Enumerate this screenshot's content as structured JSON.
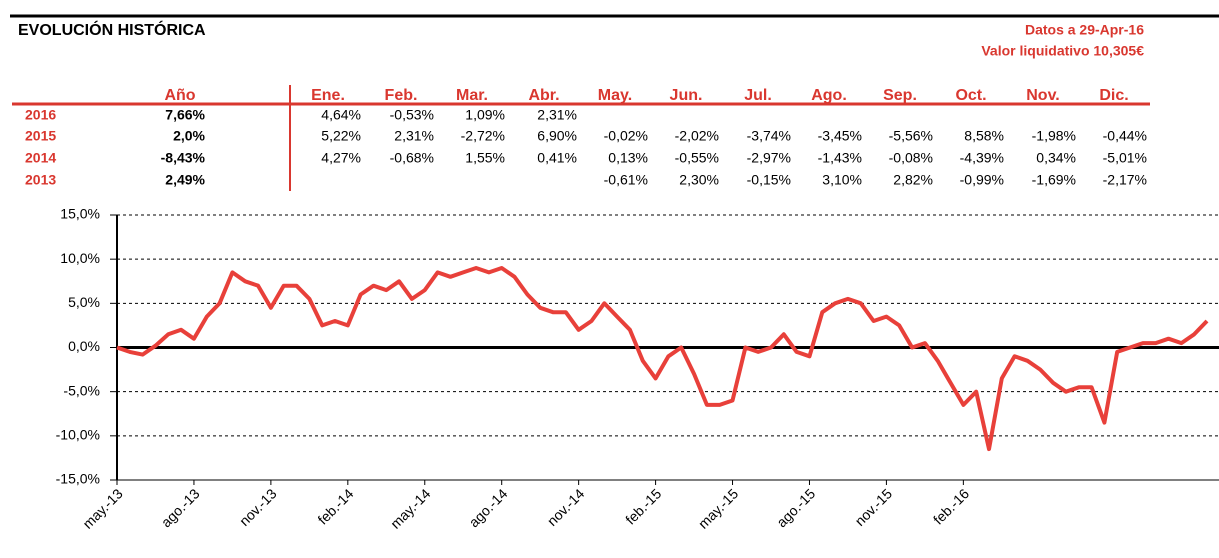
{
  "header": {
    "title": "EVOLUCIÓN HISTÓRICA",
    "date": "Datos a 29-Apr-16",
    "nav": "Valor liquidativo 10,305€"
  },
  "table": {
    "columns": [
      "Año",
      "Ene.",
      "Feb.",
      "Mar.",
      "Abr.",
      "May.",
      "Jun.",
      "Jul.",
      "Ago.",
      "Sep.",
      "Oct.",
      "Nov.",
      "Dic."
    ],
    "rows": [
      {
        "year": "2016",
        "cells": [
          "7,66%",
          "4,64%",
          "-0,53%",
          "1,09%",
          "2,31%",
          null,
          null,
          null,
          null,
          null,
          null,
          null,
          null
        ]
      },
      {
        "year": "2015",
        "cells": [
          "2,0%",
          "5,22%",
          "2,31%",
          "-2,72%",
          "6,90%",
          "-0,02%",
          "-2,02%",
          "-3,74%",
          "-3,45%",
          "-5,56%",
          "8,58%",
          "-1,98%",
          "-0,44%"
        ]
      },
      {
        "year": "2014",
        "cells": [
          "-8,43%",
          "4,27%",
          "-0,68%",
          "1,55%",
          "0,41%",
          "0,13%",
          "-0,55%",
          "-2,97%",
          "-1,43%",
          "-0,08%",
          "-4,39%",
          "0,34%",
          "-5,01%"
        ]
      },
      {
        "year": "2013",
        "cells": [
          "2,49%",
          null,
          null,
          null,
          null,
          "-0,61%",
          "2,30%",
          "-0,15%",
          "3,10%",
          "2,82%",
          "-0,99%",
          "-1,69%",
          "-2,17%"
        ]
      }
    ]
  },
  "chart_data": {
    "type": "line",
    "categories": [
      "may.-13",
      null,
      null,
      null,
      null,
      null,
      "ago.-13",
      null,
      null,
      null,
      null,
      null,
      "nov.-13",
      null,
      null,
      null,
      null,
      null,
      "feb.-14",
      null,
      null,
      null,
      null,
      null,
      "may.-14",
      null,
      null,
      null,
      null,
      null,
      "ago.-14",
      null,
      null,
      null,
      null,
      null,
      "nov.-14",
      null,
      null,
      null,
      null,
      null,
      "feb.-15",
      null,
      null,
      null,
      null,
      null,
      "may.-15",
      null,
      null,
      null,
      null,
      null,
      "ago.-15",
      null,
      null,
      null,
      null,
      null,
      "nov.-15",
      null,
      null,
      null,
      null,
      null,
      "feb.-16",
      null,
      null,
      null,
      null,
      null,
      null,
      null,
      null,
      null,
      null,
      null,
      null,
      null,
      null,
      null,
      null,
      null,
      null,
      null
    ],
    "series": [
      {
        "name": "Valor",
        "color": "#e8403a",
        "values": [
          0,
          -0.5,
          -0.8,
          0.2,
          1.5,
          2.0,
          1.0,
          3.5,
          5.0,
          8.5,
          7.5,
          7.0,
          4.5,
          7.0,
          7.0,
          5.5,
          2.5,
          3.0,
          2.5,
          6.0,
          7.0,
          6.5,
          7.5,
          5.5,
          6.5,
          8.5,
          8.0,
          8.5,
          9.0,
          8.5,
          9.0,
          8.0,
          6.0,
          4.5,
          4.0,
          4.0,
          2.0,
          3.0,
          5.0,
          3.5,
          2.0,
          -1.5,
          -3.5,
          -1.0,
          0.0,
          -3.0,
          -6.5,
          -6.5,
          -6.0,
          0.0,
          -0.5,
          0.0,
          1.5,
          -0.5,
          -1.0,
          4.0,
          5.0,
          5.5,
          5.0,
          3.0,
          3.5,
          2.5,
          0.0,
          0.5,
          -1.5,
          -4.0,
          -6.5,
          -5.0,
          -11.5,
          -3.5,
          -1.0,
          -1.5,
          -2.5,
          -4.0,
          -5.0,
          -4.5,
          -4.5,
          -8.5,
          -0.5,
          0.0,
          0.5,
          0.5,
          1.0,
          0.5,
          1.5,
          3.0
        ]
      }
    ],
    "ylim": [
      -15,
      15
    ],
    "yticks": [
      {
        "value": -15,
        "label": "-15,0%"
      },
      {
        "value": -10,
        "label": "-10,0%"
      },
      {
        "value": -5,
        "label": "-5,0%"
      },
      {
        "value": 0,
        "label": "0,0%"
      },
      {
        "value": 5,
        "label": "5,0%"
      },
      {
        "value": 10,
        "label": "10,0%"
      },
      {
        "value": 15,
        "label": "15,0%"
      }
    ],
    "grid": true
  }
}
